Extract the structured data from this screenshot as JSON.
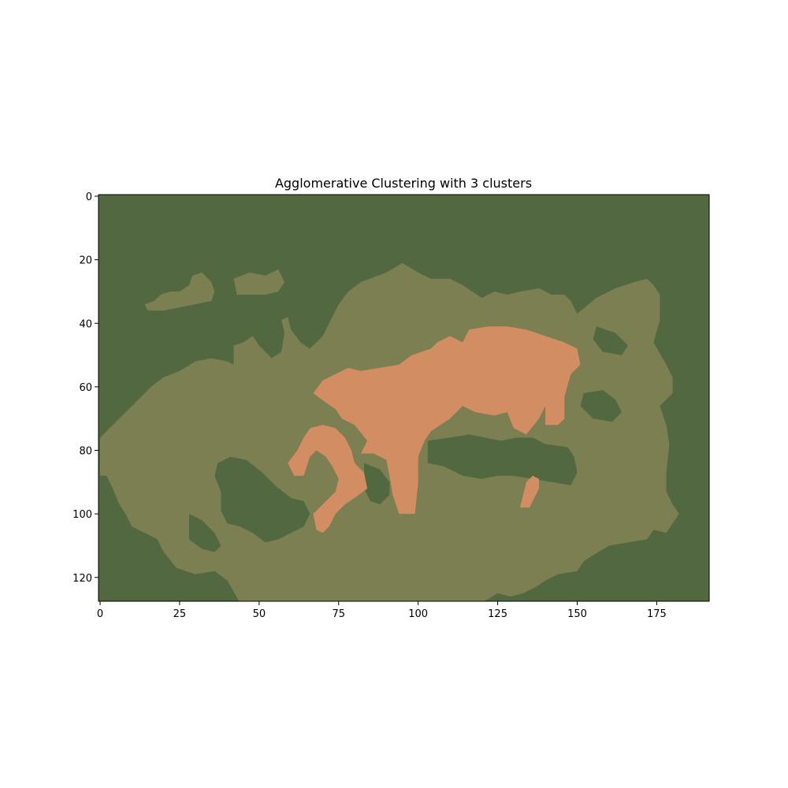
{
  "chart_data": {
    "type": "heatmap",
    "title": "Agglomerative Clustering with 3 clusters",
    "xlabel": "",
    "ylabel": "",
    "image_width": 192,
    "image_height": 128,
    "xlim": [
      -0.5,
      191.5
    ],
    "ylim": [
      127.5,
      -0.5
    ],
    "x_ticks": [
      0,
      25,
      50,
      75,
      100,
      125,
      150,
      175
    ],
    "y_ticks": [
      0,
      20,
      40,
      60,
      80,
      100,
      120
    ],
    "grid": false,
    "legend": false,
    "colors": {
      "cluster_dark_green": "#526841",
      "cluster_olive": "#7b7f52",
      "cluster_orange": "#d38d63"
    },
    "regions": [
      {
        "name": "olive-main",
        "color": "cluster_olive",
        "polygon": [
          [
            0,
            76
          ],
          [
            6,
            70
          ],
          [
            12,
            64
          ],
          [
            16,
            60
          ],
          [
            20,
            57
          ],
          [
            25,
            55
          ],
          [
            30,
            52
          ],
          [
            35,
            51
          ],
          [
            40,
            52
          ],
          [
            42,
            53
          ],
          [
            42,
            47
          ],
          [
            45,
            46
          ],
          [
            48,
            44
          ],
          [
            50,
            47
          ],
          [
            54,
            51
          ],
          [
            57,
            49
          ],
          [
            58,
            43
          ],
          [
            57,
            39
          ],
          [
            59,
            38
          ],
          [
            60,
            42
          ],
          [
            63,
            46
          ],
          [
            66,
            48
          ],
          [
            70,
            44
          ],
          [
            72,
            40
          ],
          [
            75,
            34
          ],
          [
            78,
            30
          ],
          [
            82,
            27
          ],
          [
            90,
            24
          ],
          [
            95,
            21
          ],
          [
            100,
            24
          ],
          [
            104,
            26
          ],
          [
            110,
            26
          ],
          [
            114,
            28
          ],
          [
            120,
            32
          ],
          [
            124,
            30
          ],
          [
            128,
            31
          ],
          [
            132,
            30
          ],
          [
            138,
            29
          ],
          [
            142,
            31
          ],
          [
            146,
            31
          ],
          [
            148,
            33
          ],
          [
            150,
            37
          ],
          [
            156,
            32
          ],
          [
            162,
            29
          ],
          [
            168,
            27
          ],
          [
            172,
            26
          ],
          [
            174,
            28
          ],
          [
            176,
            31
          ],
          [
            176,
            39
          ],
          [
            174,
            46
          ],
          [
            178,
            53
          ],
          [
            180,
            57
          ],
          [
            180,
            62
          ],
          [
            176,
            66
          ],
          [
            178,
            72
          ],
          [
            179,
            78
          ],
          [
            178,
            87
          ],
          [
            178,
            93
          ],
          [
            180,
            97
          ],
          [
            182,
            100
          ],
          [
            180,
            103
          ],
          [
            178,
            106
          ],
          [
            174,
            105
          ],
          [
            172,
            108
          ],
          [
            166,
            109
          ],
          [
            160,
            110
          ],
          [
            155,
            113
          ],
          [
            152,
            115
          ],
          [
            150,
            118
          ],
          [
            144,
            119
          ],
          [
            140,
            121
          ],
          [
            137,
            123
          ],
          [
            133,
            125
          ],
          [
            129,
            126
          ],
          [
            125,
            125
          ],
          [
            120,
            128
          ],
          [
            44,
            128
          ],
          [
            40,
            121
          ],
          [
            36,
            118
          ],
          [
            30,
            119
          ],
          [
            24,
            117
          ],
          [
            20,
            112
          ],
          [
            18,
            108
          ],
          [
            14,
            106
          ],
          [
            10,
            104
          ],
          [
            8,
            100
          ],
          [
            6,
            97
          ],
          [
            4,
            92
          ],
          [
            2,
            88
          ],
          [
            0,
            88
          ]
        ]
      },
      {
        "name": "olive-top-left",
        "color": "cluster_olive",
        "polygon": [
          [
            14,
            34
          ],
          [
            17,
            33
          ],
          [
            19,
            31
          ],
          [
            22,
            30
          ],
          [
            25,
            30
          ],
          [
            28,
            28
          ],
          [
            29,
            25
          ],
          [
            32,
            24
          ],
          [
            35,
            27
          ],
          [
            36,
            30
          ],
          [
            35,
            33
          ],
          [
            30,
            34
          ],
          [
            25,
            35
          ],
          [
            20,
            36
          ],
          [
            15,
            36
          ]
        ]
      },
      {
        "name": "olive-top-middle",
        "color": "cluster_olive",
        "polygon": [
          [
            42,
            26
          ],
          [
            47,
            24
          ],
          [
            52,
            25
          ],
          [
            56,
            23
          ],
          [
            58,
            27
          ],
          [
            56,
            30
          ],
          [
            52,
            31
          ],
          [
            47,
            31
          ],
          [
            43,
            31
          ]
        ]
      },
      {
        "name": "dark-hole-center-left",
        "color": "cluster_dark_green",
        "polygon": [
          [
            37,
            84
          ],
          [
            41,
            82
          ],
          [
            46,
            83
          ],
          [
            51,
            87
          ],
          [
            55,
            91
          ],
          [
            60,
            95
          ],
          [
            64,
            96
          ],
          [
            66,
            100
          ],
          [
            64,
            104
          ],
          [
            60,
            106
          ],
          [
            56,
            108
          ],
          [
            52,
            109
          ],
          [
            48,
            106
          ],
          [
            44,
            104
          ],
          [
            40,
            103
          ],
          [
            38,
            99
          ],
          [
            38,
            93
          ],
          [
            36,
            88
          ]
        ]
      },
      {
        "name": "dark-hole-right-middle",
        "color": "cluster_dark_green",
        "polygon": [
          [
            103,
            77
          ],
          [
            110,
            76
          ],
          [
            116,
            75
          ],
          [
            121,
            76
          ],
          [
            126,
            77
          ],
          [
            131,
            76
          ],
          [
            136,
            76
          ],
          [
            140,
            78
          ],
          [
            147,
            79
          ],
          [
            149,
            82
          ],
          [
            150,
            87
          ],
          [
            148,
            91
          ],
          [
            142,
            90
          ],
          [
            136,
            89
          ],
          [
            130,
            88
          ],
          [
            125,
            88
          ],
          [
            120,
            89
          ],
          [
            114,
            88
          ],
          [
            108,
            85
          ],
          [
            103,
            84
          ]
        ]
      },
      {
        "name": "dark-hole-center",
        "color": "cluster_dark_green",
        "polygon": [
          [
            83,
            84
          ],
          [
            88,
            86
          ],
          [
            91,
            90
          ],
          [
            91,
            94
          ],
          [
            88,
            97
          ],
          [
            85,
            96
          ],
          [
            83,
            92
          ]
        ]
      },
      {
        "name": "dark-hole-lower-left",
        "color": "cluster_dark_green",
        "polygon": [
          [
            28,
            100
          ],
          [
            32,
            102
          ],
          [
            36,
            106
          ],
          [
            38,
            110
          ],
          [
            36,
            112
          ],
          [
            32,
            111
          ],
          [
            28,
            108
          ]
        ]
      },
      {
        "name": "dark-hole-top-right",
        "color": "cluster_dark_green",
        "polygon": [
          [
            156,
            41
          ],
          [
            162,
            43
          ],
          [
            166,
            47
          ],
          [
            164,
            50
          ],
          [
            158,
            49
          ],
          [
            155,
            45
          ]
        ]
      },
      {
        "name": "dark-hole-right",
        "color": "cluster_dark_green",
        "polygon": [
          [
            152,
            62
          ],
          [
            158,
            61
          ],
          [
            162,
            64
          ],
          [
            164,
            68
          ],
          [
            161,
            71
          ],
          [
            155,
            70
          ],
          [
            151,
            66
          ]
        ]
      },
      {
        "name": "orange-main",
        "color": "cluster_orange",
        "polygon": [
          [
            67,
            62
          ],
          [
            70,
            58
          ],
          [
            74,
            56
          ],
          [
            78,
            54
          ],
          [
            82,
            55
          ],
          [
            88,
            54
          ],
          [
            94,
            53
          ],
          [
            98,
            50
          ],
          [
            104,
            48
          ],
          [
            106,
            46
          ],
          [
            110,
            44
          ],
          [
            114,
            46
          ],
          [
            116,
            42
          ],
          [
            122,
            41
          ],
          [
            128,
            41
          ],
          [
            134,
            42
          ],
          [
            140,
            44
          ],
          [
            146,
            46
          ],
          [
            150,
            48
          ],
          [
            151,
            53
          ],
          [
            148,
            56
          ],
          [
            146,
            63
          ],
          [
            146,
            70
          ],
          [
            144,
            72
          ],
          [
            140,
            72
          ],
          [
            140,
            66
          ],
          [
            138,
            70
          ],
          [
            134,
            75
          ],
          [
            130,
            73
          ],
          [
            128,
            68
          ],
          [
            124,
            69
          ],
          [
            118,
            68
          ],
          [
            114,
            66
          ],
          [
            110,
            70
          ],
          [
            104,
            74
          ],
          [
            102,
            77
          ],
          [
            100,
            82
          ],
          [
            100,
            90
          ],
          [
            99,
            100
          ],
          [
            94,
            100
          ],
          [
            92,
            94
          ],
          [
            91,
            88
          ],
          [
            90,
            83
          ],
          [
            86,
            81
          ],
          [
            82,
            81
          ],
          [
            84,
            77
          ],
          [
            80,
            72
          ],
          [
            76,
            70
          ],
          [
            74,
            67
          ],
          [
            71,
            65
          ]
        ]
      },
      {
        "name": "orange-left",
        "color": "cluster_orange",
        "polygon": [
          [
            62,
            80
          ],
          [
            64,
            76
          ],
          [
            66,
            73
          ],
          [
            70,
            72
          ],
          [
            74,
            73
          ],
          [
            77,
            76
          ],
          [
            79,
            80
          ],
          [
            80,
            84
          ],
          [
            83,
            87
          ],
          [
            84,
            92
          ],
          [
            80,
            95
          ],
          [
            77,
            97
          ],
          [
            74,
            100
          ],
          [
            72,
            104
          ],
          [
            70,
            106
          ],
          [
            68,
            105
          ],
          [
            67,
            100
          ],
          [
            70,
            97
          ],
          [
            74,
            93
          ],
          [
            75,
            89
          ],
          [
            73,
            85
          ],
          [
            71,
            82
          ],
          [
            68,
            80
          ],
          [
            66,
            82
          ],
          [
            65,
            85
          ],
          [
            64,
            88
          ],
          [
            61,
            88
          ],
          [
            59,
            84
          ]
        ]
      },
      {
        "name": "orange-small",
        "color": "cluster_orange",
        "polygon": [
          [
            134,
            90
          ],
          [
            136,
            88
          ],
          [
            138,
            89
          ],
          [
            138,
            92
          ],
          [
            136,
            96
          ],
          [
            135,
            98
          ],
          [
            132,
            98
          ],
          [
            133,
            94
          ]
        ]
      }
    ]
  }
}
